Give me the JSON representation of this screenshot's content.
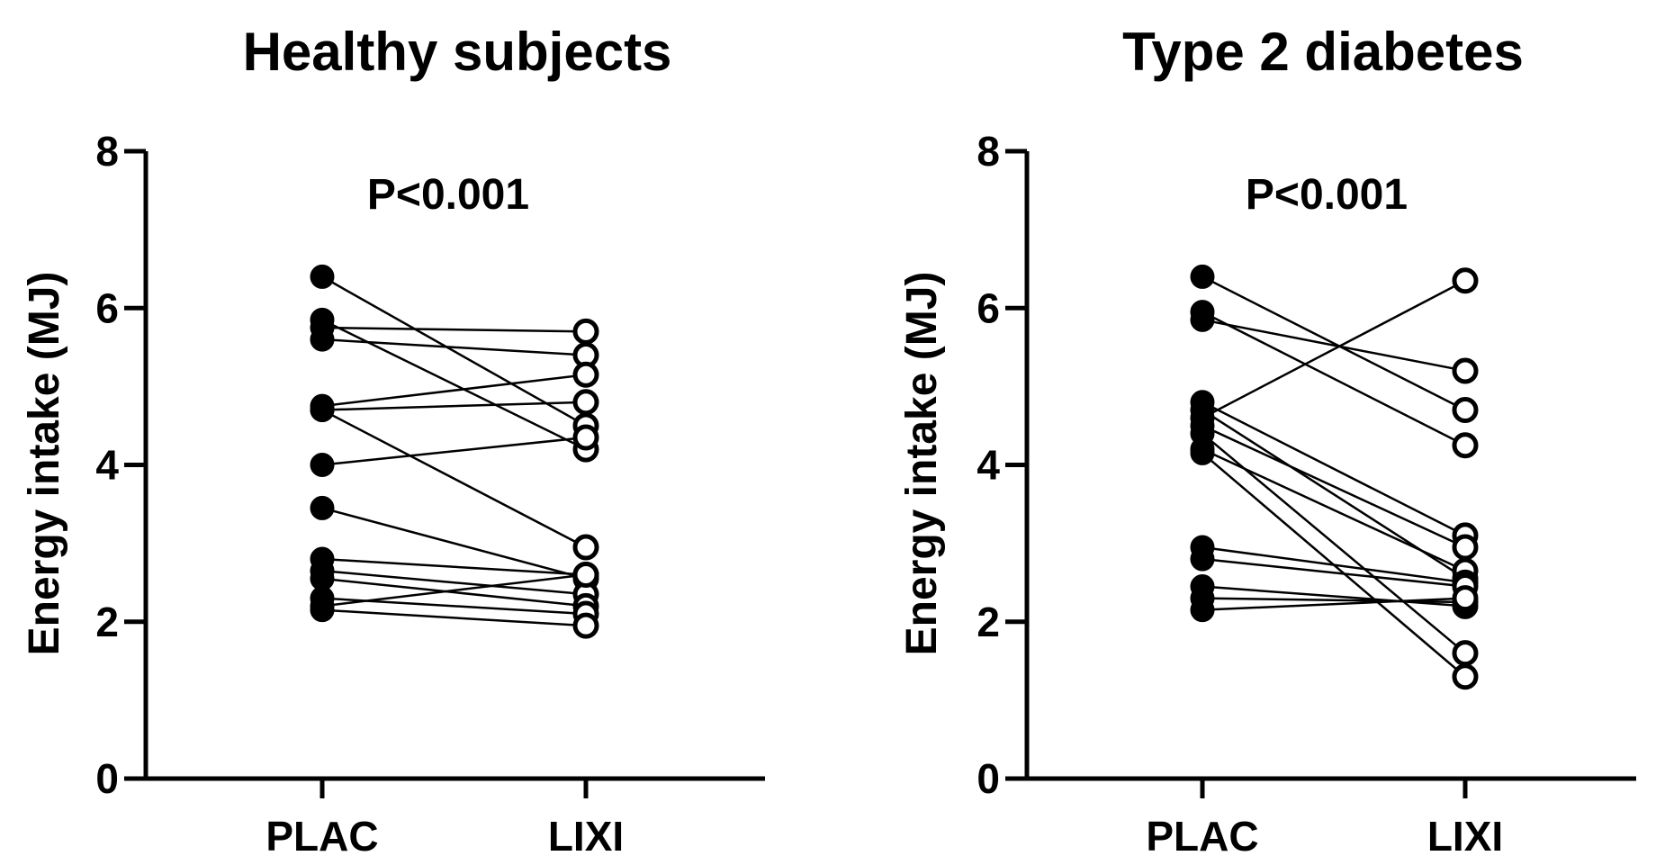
{
  "chart_data": [
    {
      "type": "scatter",
      "title": "Healthy subjects",
      "annotation": "P<0.001",
      "ylabel": "Energy intake (MJ)",
      "xlabel": "",
      "categories": [
        "PLAC",
        "LIXI"
      ],
      "ylim": [
        0,
        8
      ],
      "yticks": [
        0,
        2,
        4,
        6,
        8
      ],
      "grid": false,
      "markers": {
        "PLAC": "filled",
        "LIXI": "open"
      },
      "pairs": [
        [
          6.4,
          4.5
        ],
        [
          5.85,
          4.2
        ],
        [
          5.75,
          5.7
        ],
        [
          5.6,
          5.4
        ],
        [
          4.75,
          5.15
        ],
        [
          4.7,
          4.8
        ],
        [
          4.7,
          2.95
        ],
        [
          4.0,
          4.35
        ],
        [
          3.45,
          2.55
        ],
        [
          2.8,
          2.6
        ],
        [
          2.65,
          2.35
        ],
        [
          2.55,
          2.2
        ],
        [
          2.3,
          2.1
        ],
        [
          2.2,
          2.6
        ],
        [
          2.15,
          1.95
        ]
      ]
    },
    {
      "type": "scatter",
      "title": "Type 2 diabetes",
      "annotation": "P<0.001",
      "ylabel": "Energy intake (MJ)",
      "xlabel": "",
      "categories": [
        "PLAC",
        "LIXI"
      ],
      "ylim": [
        0,
        8
      ],
      "yticks": [
        0,
        2,
        4,
        6,
        8
      ],
      "grid": false,
      "markers": {
        "PLAC": "filled",
        "LIXI": "open"
      },
      "pairs": [
        [
          6.4,
          4.7
        ],
        [
          5.95,
          4.25
        ],
        [
          5.85,
          5.2
        ],
        [
          4.8,
          3.1
        ],
        [
          4.7,
          2.55
        ],
        [
          4.6,
          6.35
        ],
        [
          4.5,
          2.95
        ],
        [
          4.4,
          1.6
        ],
        [
          4.2,
          2.65
        ],
        [
          4.15,
          1.3
        ],
        [
          2.95,
          2.5
        ],
        [
          2.8,
          2.45
        ],
        [
          2.45,
          2.2
        ],
        [
          2.3,
          2.25
        ],
        [
          2.15,
          2.3
        ]
      ]
    }
  ]
}
